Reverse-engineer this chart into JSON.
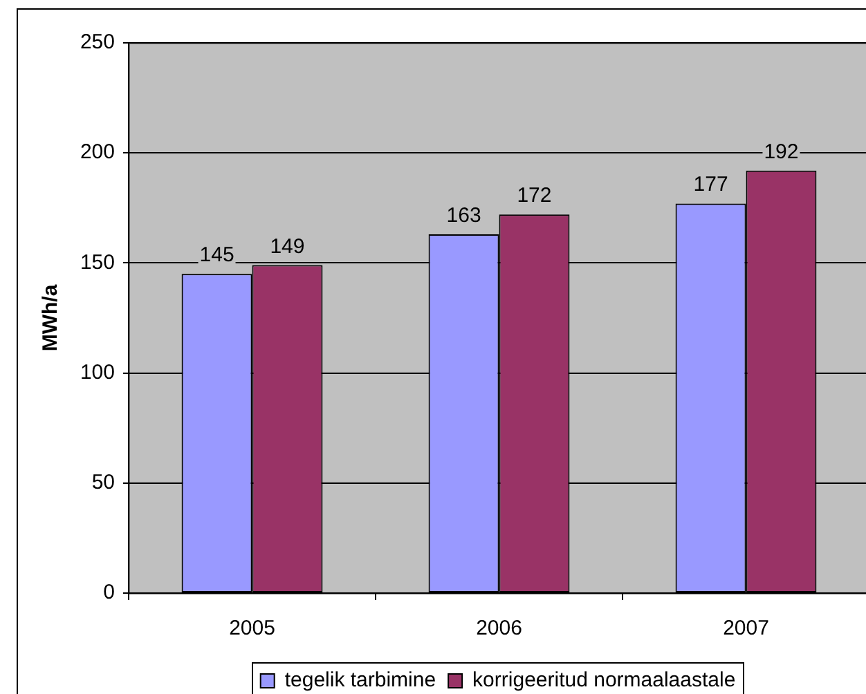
{
  "chart_data": {
    "type": "bar",
    "ylabel": "MWh/a",
    "categories": [
      "2005",
      "2006",
      "2007"
    ],
    "series": [
      {
        "name": "tegelik tarbimine",
        "color": "#9999ff",
        "values": [
          145,
          163,
          177
        ]
      },
      {
        "name": "korrigeeritud normaalaastale",
        "color": "#993366",
        "values": [
          149,
          172,
          192
        ]
      }
    ],
    "ylim": [
      0,
      250
    ],
    "yticks": [
      0,
      50,
      100,
      150,
      200,
      250
    ],
    "grid": "y",
    "legend": "bottom",
    "data_labels": true
  }
}
